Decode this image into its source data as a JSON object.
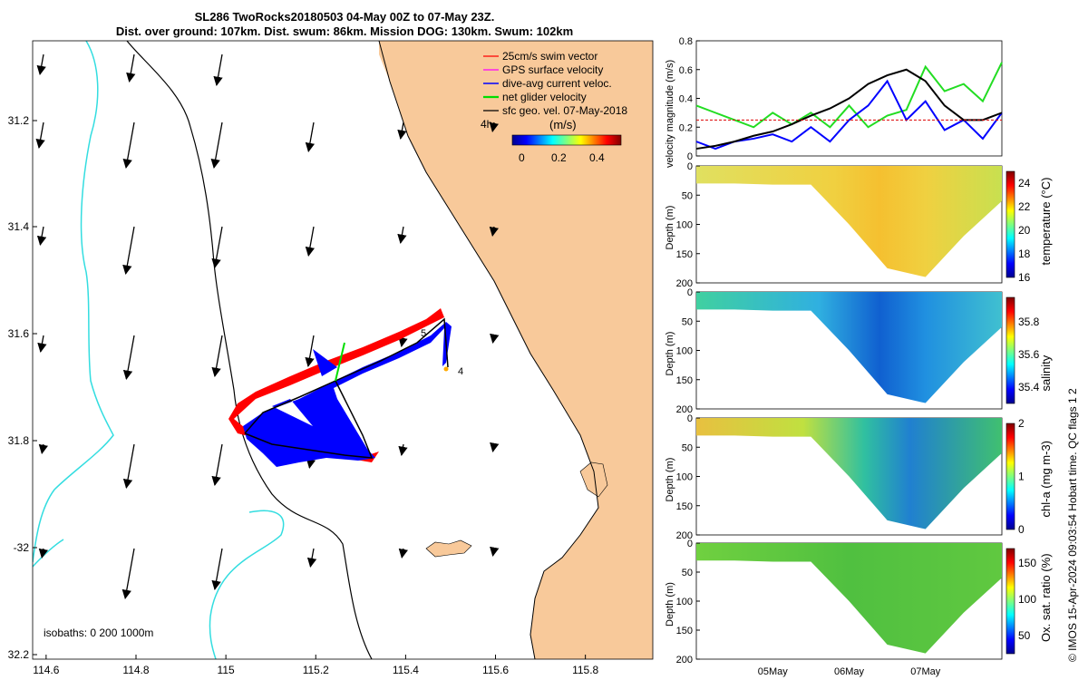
{
  "title": {
    "line1": "SL286 TwoRocks20180503 04-May 00Z to 07-May 23Z.",
    "line2": "Dist. over ground: 107km. Dist. swum: 86km. Mission DOG: 130km. Swum: 102km"
  },
  "map": {
    "lon_ticks": [
      "114.6",
      "114.8",
      "115",
      "115.2",
      "115.4",
      "115.6",
      "115.8"
    ],
    "lat_ticks": [
      "31.2",
      "31.4",
      "31.6",
      "31.8",
      "-32",
      "32.2"
    ],
    "lon_range": [
      114.57,
      115.95
    ],
    "lat_range": [
      -31.06,
      -32.2
    ],
    "legend": [
      {
        "label": "25cm/s swim vector",
        "color": "#ff0000"
      },
      {
        "label": "GPS surface velocity",
        "color": "#ff00ff"
      },
      {
        "label": "dive-avg current veloc.",
        "color": "#0000ff"
      },
      {
        "label": "net glider velocity",
        "color": "#00dd00"
      },
      {
        "label": "sfc geo. vel. 07-May-2018",
        "color": "#000000"
      }
    ],
    "interval_label": "4h",
    "colorbar_unit": "(m/s)",
    "colorbar_ticks": [
      "0",
      "0.2",
      "0.4"
    ],
    "isobaths_label": "isobaths: 0   200  1000m",
    "day_markers": [
      "5",
      "4"
    ],
    "colors": {
      "land": "#f8c99a",
      "isobath_200": "#000000",
      "isobath_1000": "#33dde0",
      "swim": "#ff0000",
      "current": "#0000ff"
    }
  },
  "chart_data": [
    {
      "type": "line",
      "title": "",
      "xlabel": "",
      "ylabel": "velocity magnitude (m/s)",
      "ylim": [
        0,
        0.8
      ],
      "y_ticks": [
        "0",
        "0.2",
        "0.4",
        "0.6",
        "0.8"
      ],
      "x": [
        0,
        0.25,
        0.5,
        0.75,
        1,
        1.25,
        1.5,
        1.75,
        2,
        2.25,
        2.5,
        2.75,
        3,
        3.25,
        3.5,
        3.75,
        4
      ],
      "series": [
        {
          "name": "net glider velocity",
          "color": "#22dd22",
          "values": [
            0.35,
            0.3,
            0.25,
            0.2,
            0.3,
            0.22,
            0.3,
            0.2,
            0.35,
            0.2,
            0.28,
            0.32,
            0.62,
            0.45,
            0.5,
            0.38,
            0.65
          ]
        },
        {
          "name": "dive-avg current veloc.",
          "color": "#0000ff",
          "values": [
            0.1,
            0.05,
            0.1,
            0.12,
            0.15,
            0.1,
            0.2,
            0.1,
            0.25,
            0.35,
            0.52,
            0.25,
            0.38,
            0.18,
            0.25,
            0.12,
            0.3
          ]
        },
        {
          "name": "surface geo. velocity",
          "color": "#000000",
          "values": [
            0.05,
            0.07,
            0.1,
            0.14,
            0.17,
            0.22,
            0.28,
            0.33,
            0.4,
            0.5,
            0.56,
            0.6,
            0.52,
            0.35,
            0.25,
            0.25,
            0.3
          ]
        },
        {
          "name": "swim speed",
          "color": "#dd0000",
          "values": [
            0.25,
            0.25,
            0.25,
            0.25,
            0.25,
            0.25,
            0.25,
            0.25,
            0.25,
            0.25,
            0.25,
            0.25,
            0.25,
            0.25,
            0.25,
            0.25,
            0.25
          ]
        }
      ]
    },
    {
      "type": "heatmap",
      "ylabel": "Depth (m)",
      "y_ticks": [
        "0",
        "50",
        "100",
        "150",
        "200"
      ],
      "ylim": [
        0,
        200
      ],
      "colorbar_label": "temperature (°C)",
      "colorbar_ticks": [
        "16",
        "18",
        "20",
        "22",
        "24"
      ],
      "colorbar_range": [
        16,
        25
      ],
      "x": [
        0,
        0.5,
        1,
        1.5,
        2,
        2.5,
        3,
        3.5,
        4
      ],
      "max_depth_m": [
        30,
        30,
        32,
        32,
        100,
        175,
        190,
        120,
        60
      ],
      "values": [
        20,
        20.5,
        21,
        21.5,
        22,
        22.5,
        23,
        22,
        21
      ]
    },
    {
      "type": "heatmap",
      "ylabel": "Depth (m)",
      "y_ticks": [
        "0",
        "50",
        "100",
        "150",
        "200"
      ],
      "ylim": [
        0,
        200
      ],
      "colorbar_label": "salinity",
      "colorbar_ticks": [
        "35.4",
        "35.6",
        "35.8"
      ],
      "colorbar_range": [
        35.3,
        35.95
      ],
      "x": [
        0,
        0.5,
        1,
        1.5,
        2,
        2.5,
        3,
        3.5,
        4
      ],
      "max_depth_m": [
        30,
        30,
        32,
        32,
        100,
        175,
        190,
        120,
        60
      ],
      "values": [
        35.62,
        35.62,
        35.63,
        35.63,
        35.55,
        35.5,
        35.45,
        35.55,
        35.6
      ]
    },
    {
      "type": "heatmap",
      "ylabel": "Depth (m)",
      "y_ticks": [
        "0",
        "50",
        "100",
        "150",
        "200"
      ],
      "ylim": [
        0,
        200
      ],
      "colorbar_label": "chl-a (mg m-3)",
      "colorbar_ticks": [
        "0",
        "1",
        "2"
      ],
      "colorbar_range": [
        0,
        2
      ],
      "x": [
        0,
        0.5,
        1,
        1.5,
        2,
        2.5,
        3,
        3.5,
        4
      ],
      "max_depth_m": [
        30,
        30,
        32,
        32,
        100,
        175,
        190,
        120,
        60
      ],
      "values": [
        1.6,
        1.5,
        1.6,
        1.5,
        1.2,
        0.8,
        0.7,
        1.1,
        1.3
      ]
    },
    {
      "type": "heatmap",
      "ylabel": "Depth (m)",
      "y_ticks": [
        "0",
        "50",
        "100",
        "150",
        "200"
      ],
      "ylim": [
        0,
        200
      ],
      "colorbar_label": "Ox. sat. ratio (%)",
      "colorbar_ticks": [
        "50",
        "100",
        "150"
      ],
      "colorbar_range": [
        25,
        170
      ],
      "x": [
        0,
        0.5,
        1,
        1.5,
        2,
        2.5,
        3,
        3.5,
        4
      ],
      "max_depth_m": [
        30,
        30,
        32,
        32,
        100,
        175,
        190,
        120,
        60
      ],
      "values": [
        115,
        112,
        112,
        110,
        100,
        95,
        92,
        100,
        108
      ],
      "x_ticks": [
        {
          "label": "05May",
          "value": 1
        },
        {
          "label": "06May",
          "value": 2
        },
        {
          "label": "07May",
          "value": 3
        }
      ]
    }
  ],
  "credit": "© IMOS 15-Apr-2024 09:03:54 Hobart time. QC flags 1  2"
}
